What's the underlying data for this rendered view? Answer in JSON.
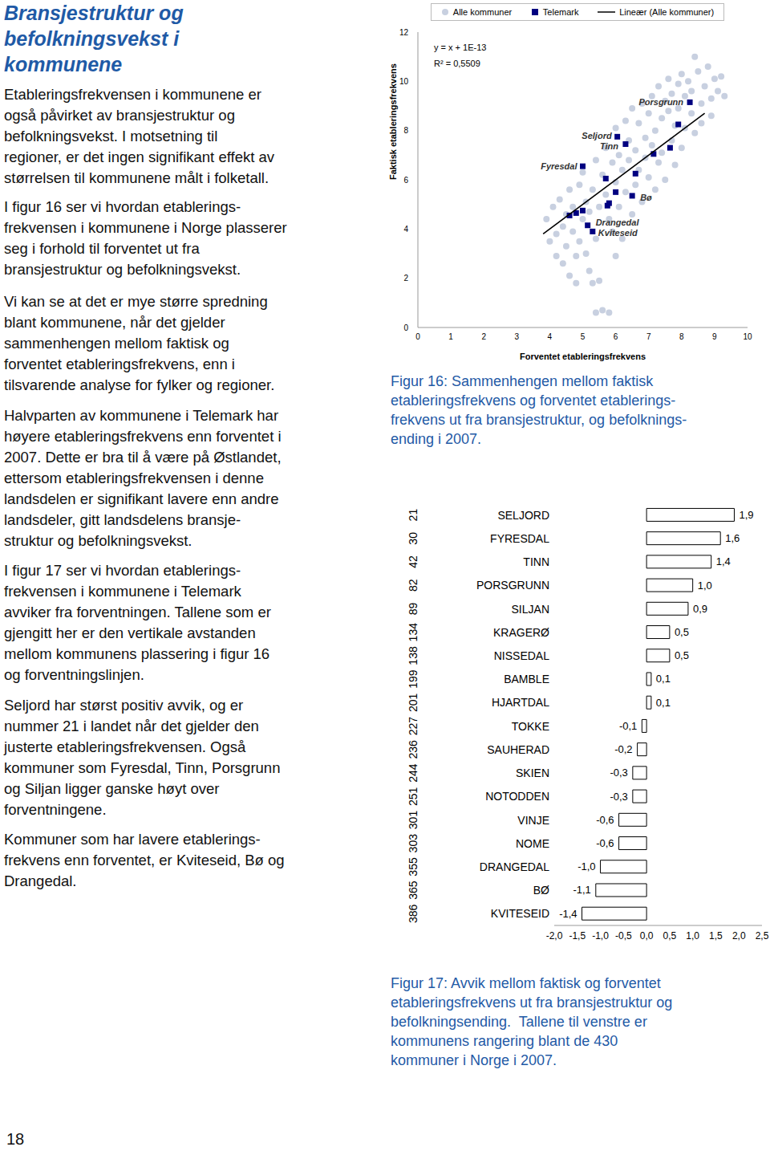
{
  "page_number": "18",
  "heading": [
    "Bransjestruktur og",
    "befolkningsvekst i",
    "kommunene"
  ],
  "paragraphs": [
    [
      "Etableringsfrekvensen i kommunene er",
      "også påvirket av bransjestruktur og",
      "befolkningsvekst. I motsetning til",
      "regioner, er det ingen signifikant effekt av",
      "størrelsen til kommunene målt i folketall."
    ],
    [
      "I figur 16 ser vi hvordan etablerings-",
      "frekvensen i kommunene i Norge plasserer",
      "seg i forhold til forventet ut fra",
      "bransjestruktur og befolkningsvekst."
    ],
    [
      "Vi kan se at det er mye større spredning",
      "blant kommunene, når det gjelder",
      "sammenhengen mellom faktisk og",
      "forventet etableringsfrekvens, enn i",
      "tilsvarende analyse for fylker og regioner."
    ],
    [
      "Halvparten av kommunene i Telemark har",
      "høyere etableringsfrekvens enn forventet i",
      "2007. Dette er bra til å være på Østlandet,",
      "ettersom etableringsfrekvensen i denne",
      "landsdelen er signifikant lavere enn andre",
      "landsdeler, gitt landsdelens bransje-",
      "struktur og befolkningsvekst."
    ],
    [
      "I figur 17 ser vi hvordan etablerings-",
      "frekvensen i kommunene i Telemark",
      "avviker fra forventningen. Tallene som er",
      "gjengitt her er den vertikale avstanden",
      "mellom kommunens plassering i figur 16",
      "og forventningslinjen."
    ],
    [
      "Seljord har størst positiv avvik, og er",
      "nummer 21 i landet når det gjelder den",
      "justerte etableringsfrekvensen. Også",
      "kommuner som Fyresdal, Tinn, Porsgrunn",
      "og Siljan ligger ganske høyt over",
      "forventningene."
    ],
    [
      "Kommuner som har lavere etablerings-",
      "frekvens enn forventet, er Kviteseid, Bø og",
      "Drangedal."
    ]
  ],
  "chart_data": [
    {
      "type": "scatter",
      "xlabel": "Forventet etableringsfrekvens",
      "ylabel": "Faktisk etableringsfrekvens",
      "xlim": [
        0,
        10
      ],
      "xticks": [
        0,
        1,
        2,
        3,
        4,
        5,
        6,
        7,
        8,
        9,
        10
      ],
      "ylim": [
        0,
        12
      ],
      "yticks": [
        0,
        2,
        4,
        6,
        8,
        10,
        12
      ],
      "legend": "top",
      "annotations": [
        "y = x + 1E-13",
        "R² = 0,5509"
      ],
      "caption": [
        "Figur 16: Sammenhengen mellom faktisk",
        "etableringsfrekvens og forventet etablerings-",
        "frekvens ut fra bransjestruktur, og befolknings-",
        "ending i 2007."
      ],
      "series": [
        {
          "name": "Alle kommuner",
          "color": "#c8d0e0",
          "marker": "circle",
          "x": [
            3.9,
            4.0,
            4.1,
            4.2,
            4.2,
            4.3,
            4.4,
            4.4,
            4.5,
            4.5,
            4.6,
            4.6,
            4.7,
            4.7,
            4.8,
            4.8,
            4.9,
            4.9,
            5.0,
            5.0,
            5.1,
            5.1,
            5.2,
            5.2,
            5.3,
            5.3,
            5.4,
            5.4,
            5.5,
            5.5,
            5.6,
            5.6,
            5.7,
            5.7,
            5.8,
            5.8,
            5.9,
            5.9,
            6.0,
            6.0,
            6.1,
            6.1,
            6.2,
            6.2,
            6.3,
            6.3,
            6.4,
            6.4,
            6.5,
            6.5,
            6.6,
            6.6,
            6.7,
            6.7,
            6.8,
            6.8,
            6.9,
            6.9,
            7.0,
            7.0,
            7.1,
            7.1,
            7.2,
            7.2,
            7.3,
            7.3,
            7.4,
            7.4,
            7.5,
            7.5,
            7.6,
            7.6,
            7.7,
            7.7,
            7.8,
            7.8,
            7.9,
            7.9,
            8.0,
            8.0,
            8.1,
            8.1,
            8.2,
            8.3,
            8.3,
            8.4,
            8.4,
            8.5,
            8.6,
            8.6,
            8.7,
            8.8,
            8.9,
            9.0,
            9.1,
            9.2,
            9.3,
            8.9,
            6.0,
            5.4
          ],
          "values": [
            4.4,
            3.5,
            4.9,
            2.9,
            3.8,
            5.2,
            4.1,
            2.6,
            3.3,
            4.6,
            5.6,
            2.1,
            3.9,
            4.9,
            1.8,
            2.9,
            5.8,
            3.5,
            4.4,
            6.3,
            3.0,
            5.1,
            4.7,
            2.3,
            1.8,
            5.6,
            6.8,
            3.6,
            4.9,
            1.9,
            6.2,
            0.7,
            5.4,
            7.3,
            4.4,
            0.6,
            6.7,
            3.9,
            5.9,
            8.1,
            4.9,
            7.0,
            6.4,
            3.6,
            8.4,
            5.5,
            7.6,
            6.8,
            4.6,
            8.9,
            7.2,
            5.8,
            8.3,
            6.4,
            9.1,
            5.1,
            7.7,
            6.9,
            8.7,
            6.1,
            9.4,
            7.4,
            5.6,
            8.0,
            9.8,
            6.7,
            8.5,
            7.1,
            9.2,
            6.0,
            8.8,
            10.1,
            7.6,
            9.5,
            8.2,
            6.6,
            9.9,
            8.9,
            10.3,
            7.3,
            9.4,
            8.1,
            10.0,
            8.7,
            9.6,
            11.0,
            7.9,
            10.4,
            9.1,
            8.3,
            9.8,
            10.6,
            9.3,
            10.1,
            9.6,
            10.2,
            9.4,
            8.6,
            2.9,
            0.6
          ]
        },
        {
          "name": "Telemark",
          "color": "#000080",
          "marker": "square",
          "x": [
            8.25,
            6.05,
            6.3,
            5.0,
            6.5,
            5.15,
            5.3,
            7.9,
            7.65,
            7.15,
            6.6,
            5.7,
            5.8,
            5.75,
            4.6,
            4.8,
            5.0,
            6.0
          ],
          "values": [
            9.15,
            7.75,
            7.45,
            6.55,
            5.35,
            4.15,
            3.9,
            8.25,
            7.3,
            7.05,
            6.25,
            6.05,
            5.05,
            4.95,
            4.55,
            4.65,
            4.75,
            5.5
          ],
          "labels": [
            "Porsgrunn",
            "Seljord",
            "Tinn",
            "Fyresdal",
            "Bø",
            "Drangedal",
            "Kviteseid",
            null,
            null,
            null,
            null,
            null,
            null,
            null,
            null,
            null,
            null,
            null
          ]
        },
        {
          "name": "Lineær (Alle kommuner)",
          "type": "line",
          "color": "#000000",
          "line_style": "solid",
          "x": [
            3.8,
            8.7
          ],
          "values": [
            3.8,
            8.7
          ]
        }
      ]
    },
    {
      "type": "bar",
      "orientation": "horizontal",
      "categories": [
        "SELJORD",
        "FYRESDAL",
        "TINN",
        "PORSGRUNN",
        "SILJAN",
        "KRAGERØ",
        "NISSEDAL",
        "BAMBLE",
        "HJARTDAL",
        "TOKKE",
        "SAUHERAD",
        "SKIEN",
        "NOTODDEN",
        "VINJE",
        "NOME",
        "DRANGEDAL",
        "BØ",
        "KVITESEID"
      ],
      "ranks": [
        21,
        30,
        42,
        82,
        89,
        134,
        138,
        199,
        201,
        227,
        236,
        244,
        251,
        301,
        303,
        355,
        365,
        386
      ],
      "values": [
        1.9,
        1.6,
        1.4,
        1.0,
        0.9,
        0.5,
        0.5,
        0.1,
        0.1,
        -0.1,
        -0.2,
        -0.3,
        -0.3,
        -0.6,
        -0.6,
        -1.0,
        -1.1,
        -1.4
      ],
      "value_labels": [
        "1,9",
        "1,6",
        "1,4",
        "1,0",
        "0,9",
        "0,5",
        "0,5",
        "0,1",
        "0,1",
        "-0,1",
        "-0,2",
        "-0,3",
        "-0,3",
        "-0,6",
        "-0,6",
        "-1,0",
        "-1,1",
        "-1,4"
      ],
      "data_labels": true,
      "color": "#ffffff",
      "xlim": [
        -2,
        2.5
      ],
      "xticks": [
        {
          "value": -2,
          "label": "-2,0"
        },
        {
          "value": -1.5,
          "label": "-1,5"
        },
        {
          "value": -1,
          "label": "-1,0"
        },
        {
          "value": -0.5,
          "label": "-0,5"
        },
        {
          "value": 0,
          "label": "0,0"
        },
        {
          "value": 0.5,
          "label": "0,5"
        },
        {
          "value": 1,
          "label": "1,0"
        },
        {
          "value": 1.5,
          "label": "1,5"
        },
        {
          "value": 2,
          "label": "2,0"
        },
        {
          "value": 2.5,
          "label": "2,5"
        }
      ],
      "caption": [
        "Figur 17: Avvik mellom faktisk og forventet",
        "etableringsfrekvens ut fra bransjestruktur og",
        "befolkningsending.  Tallene til venstre er",
        "kommunens rangering blant de 430",
        "kommuner i Norge i 2007."
      ]
    }
  ]
}
